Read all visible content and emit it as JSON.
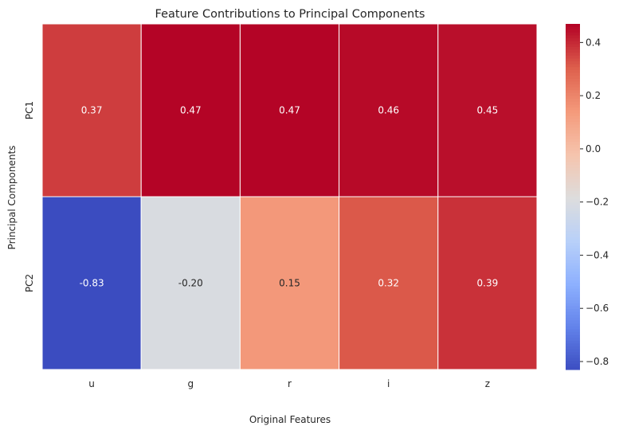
{
  "chart_data": {
    "type": "heatmap",
    "title": "Feature Contributions to Principal Components",
    "xlabel": "Original Features",
    "ylabel": "Principal Components",
    "columns": [
      "u",
      "g",
      "r",
      "i",
      "z"
    ],
    "rows": [
      "PC1",
      "PC2"
    ],
    "values": [
      [
        0.37,
        0.47,
        0.47,
        0.46,
        0.45
      ],
      [
        -0.83,
        -0.2,
        0.15,
        0.32,
        0.39
      ]
    ],
    "cell_labels": [
      [
        "0.37",
        "0.47",
        "0.47",
        "0.46",
        "0.45"
      ],
      [
        "-0.83",
        "-0.20",
        "0.15",
        "0.32",
        "0.39"
      ]
    ],
    "colormap": "coolwarm",
    "color_range": [
      -0.83,
      0.47
    ],
    "colorbar_ticks": [
      0.4,
      0.2,
      0.0,
      -0.2,
      -0.4,
      -0.6,
      -0.8
    ],
    "colorbar_tick_labels": [
      "0.4",
      "0.2",
      "0.0",
      "−0.2",
      "−0.4",
      "−0.6",
      "−0.8"
    ],
    "grid": false
  }
}
